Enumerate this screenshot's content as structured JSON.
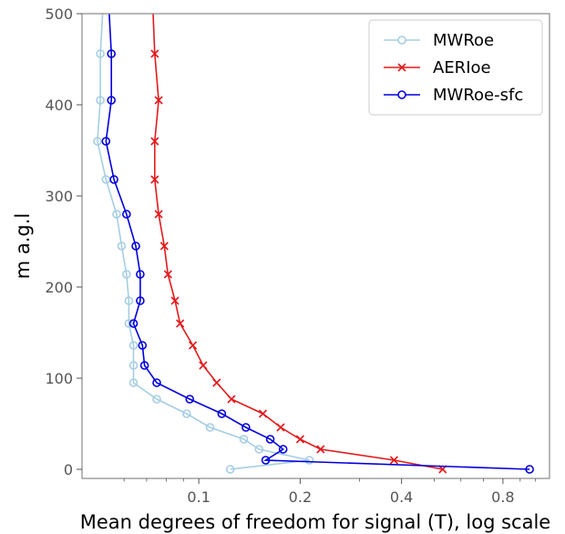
{
  "chart_data": {
    "type": "line",
    "xlabel": "Mean degrees of freedom for signal (T), log scale",
    "ylabel": "m a.g.l",
    "x_scale": "log",
    "xlim": [
      0.045,
      1.1
    ],
    "ylim": [
      -10,
      500
    ],
    "x_ticks": [
      0.1,
      0.2,
      0.4,
      0.8
    ],
    "x_tick_labels": [
      "0.1",
      "0.2",
      "0.4",
      "0.8"
    ],
    "x_minor_ticks": [
      0.06,
      0.07,
      0.08,
      0.09,
      0.3,
      0.5,
      0.6,
      0.7,
      0.9,
      1.0
    ],
    "y_ticks": [
      0,
      100,
      200,
      300,
      400,
      500
    ],
    "y_tick_labels": [
      "0",
      "100",
      "200",
      "300",
      "400",
      "500"
    ],
    "legend_position": "top-right",
    "grid": false,
    "series": [
      {
        "name": "MWRoe",
        "color": "#a6cee3",
        "marker": "circle",
        "points": [
          [
            0.124,
            0
          ],
          [
            0.213,
            10
          ],
          [
            0.151,
            22
          ],
          [
            0.136,
            33
          ],
          [
            0.108,
            46
          ],
          [
            0.092,
            61
          ],
          [
            0.075,
            77
          ],
          [
            0.064,
            95
          ],
          [
            0.064,
            114
          ],
          [
            0.064,
            136
          ],
          [
            0.062,
            160
          ],
          [
            0.062,
            185
          ],
          [
            0.061,
            214
          ],
          [
            0.059,
            245
          ],
          [
            0.057,
            280
          ],
          [
            0.053,
            318
          ],
          [
            0.05,
            360
          ],
          [
            0.051,
            405
          ],
          [
            0.051,
            456
          ],
          [
            0.052,
            510
          ]
        ]
      },
      {
        "name": "AERIoe",
        "color": "#e31a1c",
        "marker": "x",
        "points": [
          [
            0.53,
            0
          ],
          [
            0.38,
            10
          ],
          [
            0.23,
            22
          ],
          [
            0.2,
            33
          ],
          [
            0.175,
            46
          ],
          [
            0.155,
            61
          ],
          [
            0.125,
            77
          ],
          [
            0.113,
            95
          ],
          [
            0.103,
            114
          ],
          [
            0.096,
            136
          ],
          [
            0.088,
            160
          ],
          [
            0.085,
            185
          ],
          [
            0.081,
            214
          ],
          [
            0.079,
            245
          ],
          [
            0.076,
            280
          ],
          [
            0.074,
            318
          ],
          [
            0.074,
            360
          ],
          [
            0.076,
            405
          ],
          [
            0.074,
            456
          ],
          [
            0.073,
            510
          ]
        ]
      },
      {
        "name": "MWRoe-sfc",
        "color": "#0000dd",
        "marker": "circle",
        "points": [
          [
            0.96,
            0
          ],
          [
            0.158,
            10
          ],
          [
            0.178,
            22
          ],
          [
            0.163,
            33
          ],
          [
            0.138,
            46
          ],
          [
            0.117,
            61
          ],
          [
            0.094,
            77
          ],
          [
            0.075,
            95
          ],
          [
            0.069,
            114
          ],
          [
            0.068,
            136
          ],
          [
            0.064,
            160
          ],
          [
            0.067,
            185
          ],
          [
            0.067,
            214
          ],
          [
            0.065,
            245
          ],
          [
            0.061,
            280
          ],
          [
            0.056,
            318
          ],
          [
            0.053,
            360
          ],
          [
            0.055,
            405
          ],
          [
            0.055,
            456
          ],
          [
            0.054,
            510
          ]
        ]
      }
    ]
  }
}
